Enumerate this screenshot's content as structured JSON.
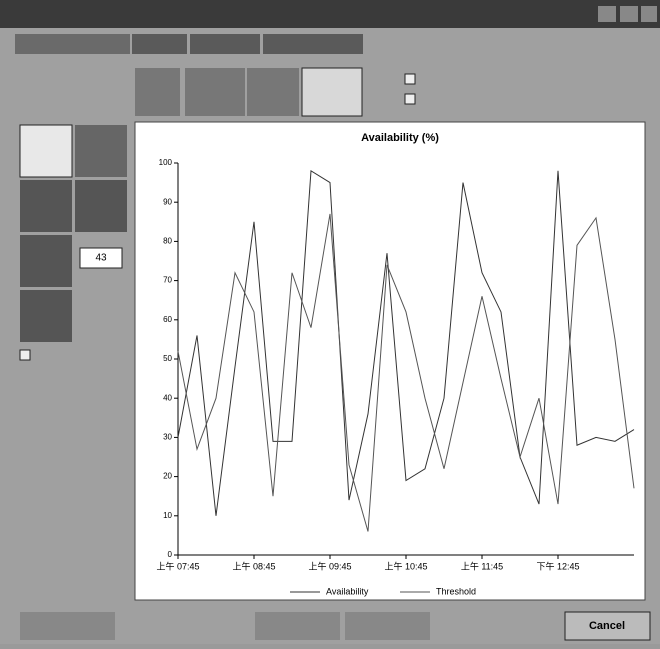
{
  "window": {
    "input_value": "43",
    "cancel_button": "Cancel"
  },
  "chart_data": {
    "type": "line",
    "title": "Availability (%)",
    "categories": [
      "上午 07:45",
      null,
      null,
      null,
      "上午 08:45",
      null,
      null,
      null,
      "上午 09:45",
      null,
      null,
      null,
      "上午 10:45",
      null,
      null,
      null,
      "上午 11:45",
      null,
      null,
      null,
      "下午 12:45",
      null,
      null,
      null,
      null
    ],
    "series": [
      {
        "name": "Availability",
        "color": "#333333",
        "values": [
          30,
          56,
          10,
          48,
          85,
          29,
          29,
          98,
          95,
          14,
          36,
          77,
          19,
          22,
          40,
          95,
          72,
          62,
          25,
          13,
          98,
          28,
          30,
          29,
          32
        ]
      },
      {
        "name": "Threshold",
        "color": "#555555",
        "values": [
          52,
          27,
          40,
          72,
          62,
          15,
          72,
          58,
          87,
          23,
          6,
          74,
          62,
          40,
          22,
          44,
          66,
          45,
          25,
          40,
          13,
          79,
          86,
          55,
          17
        ]
      }
    ],
    "ylim": [
      0,
      100
    ],
    "yticks": [
      0,
      10,
      20,
      30,
      40,
      50,
      60,
      70,
      80,
      90,
      100
    ]
  }
}
